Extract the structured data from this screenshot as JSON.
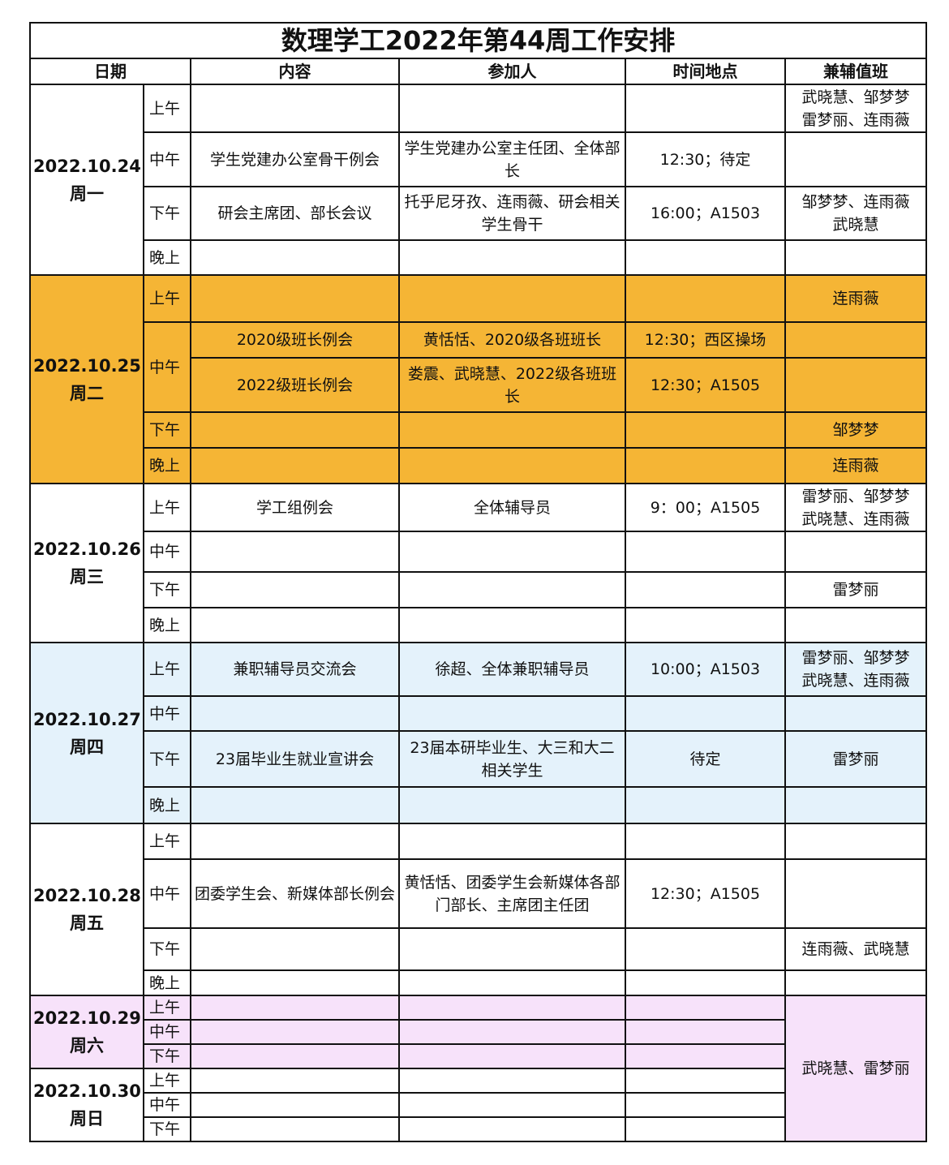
{
  "title": "数理学工2022年第44周工作安排",
  "headers": [
    "日期",
    "内容",
    "参加人",
    "时间地点",
    "兼辅值班"
  ],
  "colors": {
    "tuesday": "#f5b535",
    "thursday": "#e4f2fb",
    "weekend": "#f7e2fa",
    "default": "#ffffff",
    "border": "#111111"
  },
  "days": [
    {
      "date": "2022.10.24",
      "weekday": "周一",
      "bg": "#ffffff",
      "slots": [
        {
          "label": "上午",
          "entries": [
            {
              "content": "",
              "participants": "",
              "time": "",
              "duty": "武晓慧、邹梦梦\n雷梦丽、连雨薇"
            }
          ]
        },
        {
          "label": "中午",
          "entries": [
            {
              "content": "学生党建办公室骨干例会",
              "participants": "学生党建办公室主任团、全体部长",
              "time": "12:30；待定",
              "duty": ""
            }
          ]
        },
        {
          "label": "下午",
          "entries": [
            {
              "content": "研会主席团、部长会议",
              "participants": "托乎尼牙孜、连雨薇、研会相关学生骨干",
              "time": "16:00；A1503",
              "duty": "邹梦梦、连雨薇\n武晓慧"
            }
          ]
        },
        {
          "label": "晚上",
          "entries": [
            {
              "content": "",
              "participants": "",
              "time": "",
              "duty": ""
            }
          ]
        }
      ]
    },
    {
      "date": "2022.10.25",
      "weekday": "周二",
      "bg": "#f5b535",
      "slots": [
        {
          "label": "上午",
          "entries": [
            {
              "content": "",
              "participants": "",
              "time": "",
              "duty": "连雨薇"
            }
          ]
        },
        {
          "label": "中午",
          "entries": [
            {
              "content": "2020级班长例会",
              "participants": "黄恬恬、2020级各班班长",
              "time": "12:30；西区操场",
              "duty": ""
            },
            {
              "content": "2022级班长例会",
              "participants": "娄震、武晓慧、2022级各班班长",
              "time": "12:30；A1505",
              "duty": ""
            }
          ]
        },
        {
          "label": "下午",
          "entries": [
            {
              "content": "",
              "participants": "",
              "time": "",
              "duty": "邹梦梦"
            }
          ]
        },
        {
          "label": "晚上",
          "entries": [
            {
              "content": "",
              "participants": "",
              "time": "",
              "duty": "连雨薇"
            }
          ]
        }
      ]
    },
    {
      "date": "2022.10.26",
      "weekday": "周三",
      "bg": "#ffffff",
      "slots": [
        {
          "label": "上午",
          "entries": [
            {
              "content": "学工组例会",
              "participants": "全体辅导员",
              "time": "9：00；A1505",
              "duty": "雷梦丽、邹梦梦\n武晓慧、连雨薇"
            }
          ]
        },
        {
          "label": "中午",
          "entries": [
            {
              "content": "",
              "participants": "",
              "time": "",
              "duty": ""
            }
          ]
        },
        {
          "label": "下午",
          "entries": [
            {
              "content": "",
              "participants": "",
              "time": "",
              "duty": "雷梦丽"
            }
          ]
        },
        {
          "label": "晚上",
          "entries": [
            {
              "content": "",
              "participants": "",
              "time": "",
              "duty": ""
            }
          ]
        }
      ]
    },
    {
      "date": "2022.10.27",
      "weekday": "周四",
      "bg": "#e4f2fb",
      "slots": [
        {
          "label": "上午",
          "entries": [
            {
              "content": "兼职辅导员交流会",
              "participants": "徐超、全体兼职辅导员",
              "time": "10:00；A1503",
              "duty": "雷梦丽、邹梦梦\n武晓慧、连雨薇"
            }
          ]
        },
        {
          "label": "中午",
          "entries": [
            {
              "content": "",
              "participants": "",
              "time": "",
              "duty": ""
            }
          ]
        },
        {
          "label": "下午",
          "entries": [
            {
              "content": "23届毕业生就业宣讲会",
              "participants": "23届本研毕业生、大三和大二相关学生",
              "time": "待定",
              "duty": "雷梦丽"
            }
          ]
        },
        {
          "label": "晚上",
          "entries": [
            {
              "content": "",
              "participants": "",
              "time": "",
              "duty": ""
            }
          ]
        }
      ]
    },
    {
      "date": "2022.10.28",
      "weekday": "周五",
      "bg": "#ffffff",
      "slots": [
        {
          "label": "上午",
          "entries": [
            {
              "content": "",
              "participants": "",
              "time": "",
              "duty": ""
            }
          ]
        },
        {
          "label": "中午",
          "entries": [
            {
              "content": "团委学生会、新媒体部长例会",
              "participants": "黄恬恬、团委学生会新媒体各部门部长、主席团主任团",
              "time": "12:30；A1505",
              "duty": ""
            }
          ]
        },
        {
          "label": "下午",
          "entries": [
            {
              "content": "",
              "participants": "",
              "time": "",
              "duty": "连雨薇、武晓慧"
            }
          ]
        },
        {
          "label": "晚上",
          "entries": [
            {
              "content": "",
              "participants": "",
              "time": "",
              "duty": ""
            }
          ]
        }
      ]
    },
    {
      "date": "2022.10.29",
      "weekday": "周六",
      "bg": "#f7e2fa",
      "slots": [
        {
          "label": "上午",
          "entries": [
            {
              "content": "",
              "participants": "",
              "time": ""
            }
          ]
        },
        {
          "label": "中午",
          "entries": [
            {
              "content": "",
              "participants": "",
              "time": ""
            }
          ]
        },
        {
          "label": "下午",
          "entries": [
            {
              "content": "",
              "participants": "",
              "time": ""
            }
          ]
        }
      ]
    },
    {
      "date": "2022.10.30",
      "weekday": "周日",
      "bg": "#ffffff",
      "slots": [
        {
          "label": "上午",
          "entries": [
            {
              "content": "",
              "participants": "",
              "time": ""
            }
          ]
        },
        {
          "label": "中午",
          "entries": [
            {
              "content": "",
              "participants": "",
              "time": ""
            }
          ]
        },
        {
          "label": "下午",
          "entries": [
            {
              "content": "",
              "participants": "",
              "time": ""
            }
          ]
        }
      ]
    }
  ],
  "weekend_duty": "武晓慧、雷梦丽"
}
